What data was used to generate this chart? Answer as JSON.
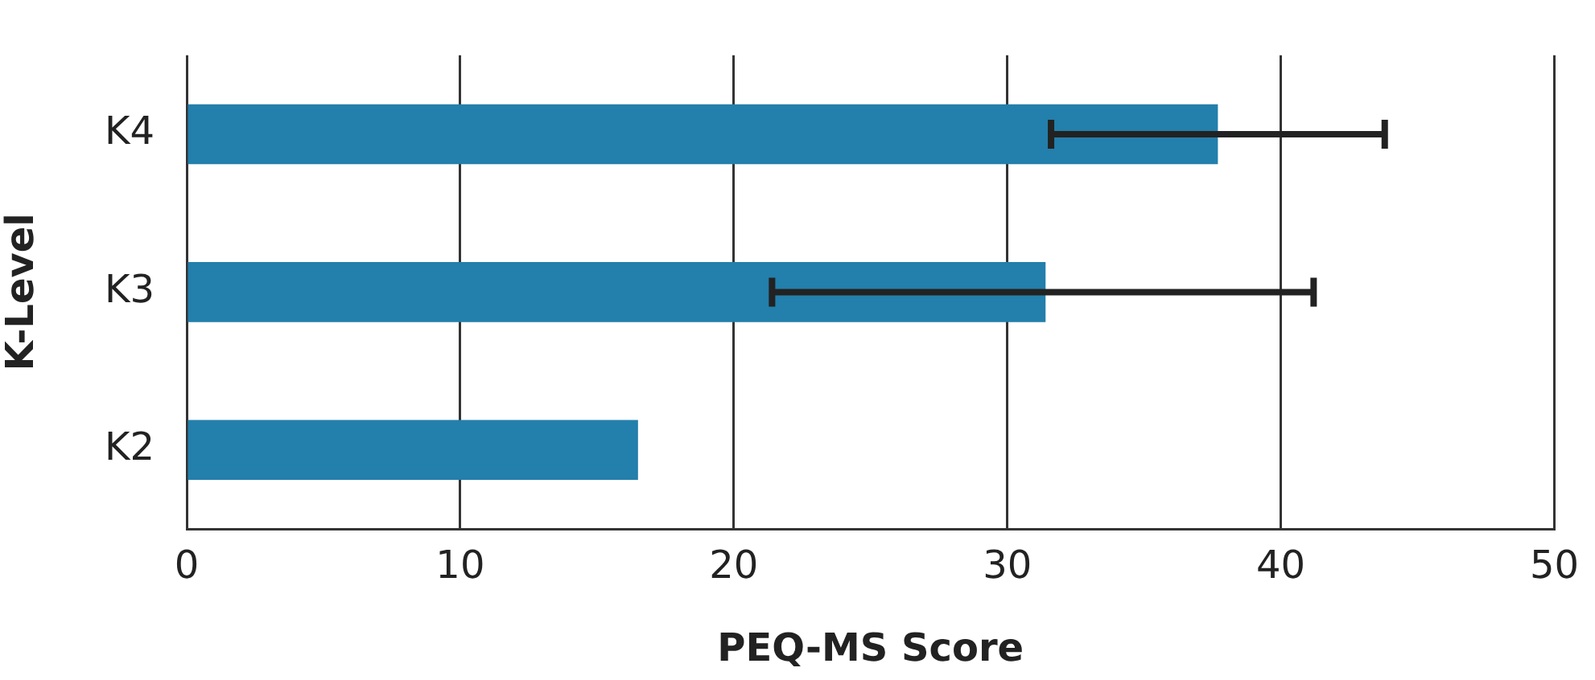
{
  "chart_data": {
    "type": "bar",
    "orientation": "horizontal",
    "xlabel": "PEQ-MS Score",
    "ylabel": "K-Level",
    "categories": [
      "K4",
      "K3",
      "K2"
    ],
    "values": [
      37.7,
      31.4,
      16.5
    ],
    "errors": [
      [
        31.6,
        43.8
      ],
      [
        21.4,
        41.2
      ],
      null
    ],
    "color": "#237fab",
    "xlim": [
      0,
      50
    ],
    "xticks": [
      0,
      10,
      20,
      30,
      40,
      50
    ],
    "grid": "x",
    "legend": false
  }
}
